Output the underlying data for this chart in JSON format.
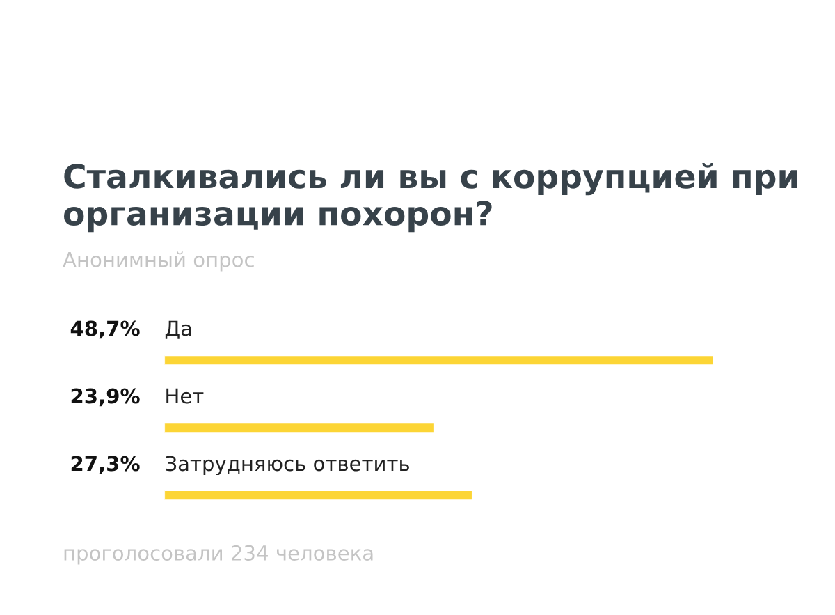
{
  "chart_data": {
    "type": "bar",
    "orientation": "horizontal",
    "title": "Сталкивались ли вы с коррупцией при организации похорон?",
    "subtitle": "Анонимный опрос",
    "categories": [
      "Да",
      "Нет",
      "Затрудняюсь ответить"
    ],
    "values": [
      48.7,
      23.9,
      27.3
    ],
    "value_labels": [
      "48,7%",
      "23,9%",
      "27,3%"
    ],
    "color": "#fcd535",
    "annotations": [
      "проголосовали 234 человека"
    ]
  }
}
